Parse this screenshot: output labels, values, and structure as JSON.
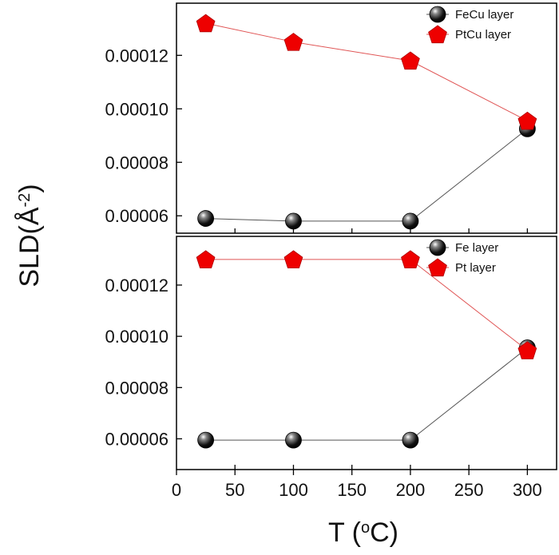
{
  "chart_data": {
    "type": "scatter",
    "ylabel": {
      "prefix": "SLD(Å",
      "sup": "-2",
      "suffix": ")"
    },
    "xlabel": {
      "prefix": "T (",
      "sup": "o",
      "suffix": "C)"
    },
    "xlim": [
      0,
      325
    ],
    "xticks": [
      0,
      50,
      100,
      150,
      200,
      250,
      300
    ],
    "x_tick_labels": [
      "0",
      "50",
      "100",
      "150",
      "200",
      "250",
      "300"
    ],
    "panels": [
      {
        "ylim": [
          5.35e-05,
          0.0001395
        ],
        "yticks": [
          6e-05,
          8e-05,
          0.0001,
          0.00012
        ],
        "y_tick_labels": [
          "0.00006",
          "0.00008",
          "0.00010",
          "0.00012"
        ],
        "legend_position": "top-right",
        "series": [
          {
            "name": "FeCu layer",
            "marker": "sphere",
            "color": "#000000",
            "line_color": "#555555",
            "x": [
              25,
              100,
              200,
              300
            ],
            "y": [
              5.9e-05,
              5.8e-05,
              5.8e-05,
              9.25e-05
            ]
          },
          {
            "name": "PtCu layer",
            "marker": "pentagon",
            "color": "#ee0000",
            "line_color": "#e05555",
            "x": [
              25,
              100,
              200,
              300
            ],
            "y": [
              0.000132,
              0.000125,
              0.000118,
              9.55e-05
            ]
          }
        ]
      },
      {
        "ylim": [
          4.8e-05,
          0.000139
        ],
        "yticks": [
          6e-05,
          8e-05,
          0.0001,
          0.00012
        ],
        "y_tick_labels": [
          "0.00006",
          "0.00008",
          "0.00010",
          "0.00012"
        ],
        "legend_position": "top-right",
        "series": [
          {
            "name": "Fe layer",
            "marker": "sphere",
            "color": "#000000",
            "line_color": "#555555",
            "x": [
              25,
              100,
              200,
              300
            ],
            "y": [
              5.95e-05,
              5.95e-05,
              5.95e-05,
              9.55e-05
            ]
          },
          {
            "name": "Pt layer",
            "marker": "pentagon",
            "color": "#ee0000",
            "line_color": "#e05555",
            "x": [
              25,
              100,
              200,
              300
            ],
            "y": [
              0.00013,
              0.00013,
              0.00013,
              9.45e-05
            ]
          }
        ]
      }
    ]
  }
}
